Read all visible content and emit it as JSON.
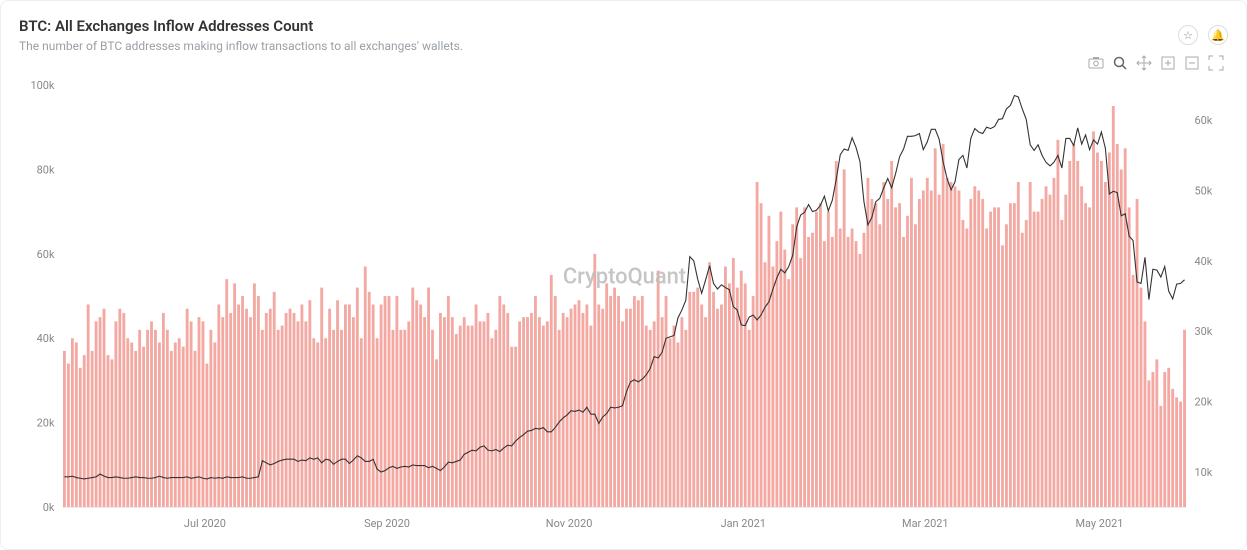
{
  "header": {
    "title": "BTC: All Exchanges Inflow Addresses Count",
    "subtitle": "The number of BTC addresses making inflow transactions to all exchanges' wallets."
  },
  "head_icons": {
    "star": "☆",
    "bell": "🔔"
  },
  "toolbar_icons": {
    "camera": "camera-icon",
    "zoom": "zoom-icon",
    "pan": "pan-icon",
    "zoom_in": "zoom-in-icon",
    "zoom_out": "zoom-out-icon",
    "fullscreen": "fullscreen-icon"
  },
  "watermark": "CryptoQuant",
  "chart": {
    "type": "bar+line",
    "background_color": "#ffffff",
    "bar_color": "#f3a8a2",
    "bar_border_color": "#f3a8a2",
    "line_color": "#333333",
    "axis_text_color": "#888888",
    "grid_color": "#eeeeee",
    "left_axis": {
      "label_suffix": "k",
      "min": 0,
      "max": 100,
      "tick_step": 20
    },
    "right_axis": {
      "label_suffix": "k",
      "min": 5,
      "max": 65,
      "tick_step": 10
    },
    "x_ticks": [
      "Jul 2020",
      "Sep 2020",
      "Nov 2020",
      "Jan 2021",
      "Mar 2021",
      "May 2021"
    ],
    "bars_k": [
      37,
      34,
      40,
      39,
      33,
      36,
      48,
      37,
      44,
      45,
      47,
      36,
      35,
      44,
      47,
      46,
      40,
      39,
      37,
      42,
      38,
      42,
      44,
      42,
      39,
      46,
      42,
      37,
      39,
      40,
      38,
      47,
      44,
      37,
      45,
      44,
      34,
      42,
      39,
      48,
      45,
      54,
      46,
      53,
      48,
      50,
      47,
      45,
      53,
      50,
      42,
      46,
      47,
      51,
      42,
      43,
      46,
      47,
      46,
      44,
      48,
      44,
      49,
      40,
      39,
      52,
      40,
      47,
      42,
      49,
      42,
      48,
      48,
      45,
      52,
      40,
      57,
      51,
      48,
      40,
      48,
      50,
      50,
      42,
      50,
      42,
      42,
      44,
      52,
      49,
      48,
      45,
      52,
      42,
      35,
      46,
      45,
      50,
      45,
      41,
      43,
      45,
      43,
      43,
      48,
      44,
      44,
      46,
      40,
      42,
      50,
      48,
      46,
      38,
      38,
      44,
      45,
      45,
      46,
      50,
      45,
      43,
      44,
      55,
      50,
      42,
      46,
      45,
      47,
      48,
      49,
      46,
      48,
      43,
      60,
      48,
      47,
      53,
      50,
      52,
      50,
      44,
      47,
      47,
      50,
      49,
      50,
      43,
      42,
      44,
      56,
      45,
      50,
      40,
      43,
      39,
      45,
      42,
      51,
      51,
      52,
      48,
      45,
      58,
      51,
      47,
      48,
      57,
      53,
      59,
      52,
      56,
      53,
      42,
      50,
      77,
      72,
      58,
      69,
      57,
      63,
      70,
      61,
      54,
      67,
      71,
      59,
      71,
      64,
      65,
      70,
      72,
      63,
      70,
      64,
      82,
      66,
      80,
      64,
      66,
      63,
      60,
      65,
      78,
      73,
      72,
      67,
      77,
      73,
      82,
      71,
      72,
      64,
      69,
      78,
      67,
      73,
      75,
      78,
      75,
      85,
      74,
      86,
      78,
      77,
      76,
      75,
      68,
      66,
      73,
      76,
      75,
      73,
      66,
      70,
      71,
      71,
      62,
      67,
      72,
      72,
      77,
      65,
      68,
      77,
      70,
      70,
      73,
      76,
      74,
      78,
      87,
      68,
      74,
      82,
      86,
      82,
      76,
      72,
      71,
      89,
      84,
      82,
      77,
      84,
      95,
      86,
      80,
      85,
      71,
      55,
      73,
      52,
      44,
      30,
      32,
      35,
      24,
      32,
      33,
      28,
      26,
      25,
      42
    ],
    "line_k": [
      9.3,
      9.3,
      9.4,
      9.2,
      9.1,
      9.0,
      9.1,
      9.2,
      9.3,
      9.7,
      9.4,
      9.2,
      9.2,
      9.3,
      9.2,
      9.1,
      9.1,
      9.2,
      9.3,
      9.2,
      9.2,
      9.1,
      9.1,
      9.2,
      9.4,
      9.2,
      9.1,
      9.2,
      9.2,
      9.2,
      9.2,
      9.3,
      9.1,
      9.2,
      9.3,
      9.1,
      9.0,
      9.2,
      9.1,
      9.2,
      9.1,
      9.3,
      9.2,
      9.2,
      9.2,
      9.3,
      9.1,
      9.1,
      9.2,
      9.3,
      11.6,
      11.3,
      11.0,
      11.2,
      11.5,
      11.7,
      11.8,
      11.8,
      11.8,
      11.5,
      11.7,
      11.6,
      12.0,
      11.8,
      12.0,
      11.3,
      11.8,
      11.7,
      11.1,
      11.5,
      11.8,
      11.8,
      11.2,
      11.7,
      12.3,
      12.0,
      11.5,
      11.5,
      11.8,
      10.4,
      10.0,
      10.2,
      10.6,
      10.8,
      10.5,
      10.7,
      10.8,
      10.7,
      11.0,
      10.9,
      10.9,
      10.9,
      10.6,
      10.8,
      10.5,
      10.2,
      10.7,
      11.4,
      11.3,
      11.5,
      11.7,
      12.5,
      12.8,
      13.1,
      13.0,
      13.5,
      13.7,
      13.1,
      13.0,
      13.2,
      12.9,
      13.4,
      13.8,
      13.7,
      14.4,
      14.9,
      15.3,
      15.8,
      15.9,
      16.2,
      16.1,
      16.3,
      15.7,
      15.7,
      16.3,
      17.1,
      17.7,
      18.1,
      18.7,
      18.6,
      18.8,
      18.5,
      19.2,
      18.2,
      18.2,
      16.9,
      17.8,
      18.3,
      19.2,
      19.1,
      19.2,
      19.4,
      21.4,
      22.8,
      23.1,
      22.8,
      23.2,
      23.8,
      24.7,
      26.4,
      26.2,
      27.0,
      29.0,
      29.2,
      29.4,
      31.9,
      33.0,
      34.4,
      40.6,
      40.0,
      37.4,
      35.4,
      37.3,
      39.3,
      36.8,
      36.0,
      36.6,
      36.2,
      35.9,
      33.5,
      33.0,
      30.9,
      30.8,
      32.0,
      32.3,
      31.6,
      32.3,
      33.4,
      34.2,
      36.0,
      37.6,
      38.8,
      38.3,
      39.2,
      40.8,
      44.8,
      46.5,
      46.9,
      48.0,
      47.0,
      47.2,
      47.9,
      49.2,
      47.1,
      48.6,
      51.6,
      55.1,
      55.9,
      55.7,
      57.5,
      56.1,
      54.1,
      48.4,
      45.1,
      46.2,
      48.4,
      48.9,
      50.4,
      51.7,
      50.4,
      52.4,
      54.8,
      55.9,
      57.7,
      57.7,
      57.8,
      58.1,
      55.8,
      56.9,
      58.7,
      58.7,
      57.3,
      54.1,
      51.7,
      50.1,
      51.2,
      54.4,
      55.0,
      53.2,
      57.4,
      58.8,
      58.3,
      58.1,
      59.0,
      58.8,
      59.1,
      60.1,
      60.2,
      61.6,
      62.1,
      63.5,
      63.3,
      61.6,
      60.1,
      56.5,
      55.7,
      56.5,
      55.0,
      54.0,
      53.5,
      54.0,
      55.0,
      53.2,
      57.4,
      57.4,
      56.4,
      58.9,
      56.6,
      57.9,
      55.8,
      57.2,
      56.6,
      58.3,
      56.0,
      49.5,
      49.9,
      49.7,
      46.4,
      46.7,
      43.5,
      42.9,
      37.0,
      36.8,
      40.5,
      34.5,
      38.8,
      38.7,
      37.7,
      39.2,
      35.7,
      34.6,
      36.7,
      36.8,
      37.3
    ]
  }
}
